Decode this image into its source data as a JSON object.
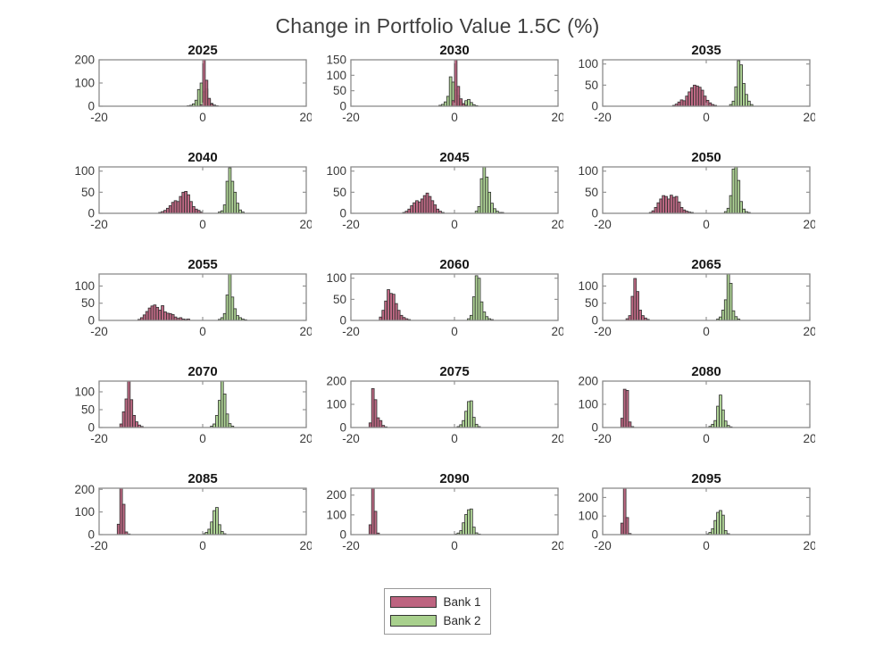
{
  "figure": {
    "title": "Change in Portfolio Value 1.5C (%)"
  },
  "colors": {
    "bank1": "#b95c7a",
    "bank2": "#a8d08d",
    "bar_edge": "#2f2f2f",
    "axis": "#8c8c8c",
    "tick_label": "#3a3a3a",
    "subplot_title": "#161616"
  },
  "legend": {
    "items": [
      {
        "label": "Bank 1",
        "color": "#bd6480"
      },
      {
        "label": "Bank 2",
        "color": "#a8d08d"
      }
    ]
  },
  "chart_data": [
    {
      "type": "histogram",
      "title": "2025",
      "xlim": [
        -20,
        20
      ],
      "xticks": [
        -20,
        0,
        20
      ],
      "ylim": [
        0,
        200
      ],
      "yticks": [
        0,
        100,
        200
      ],
      "series": [
        {
          "name": "Bank 1",
          "bin_start": -0.5,
          "bin_width": 0.5,
          "counts": [
            6,
            200,
            112,
            34,
            10,
            4
          ]
        },
        {
          "name": "Bank 2",
          "bin_start": -3.0,
          "bin_width": 0.5,
          "counts": [
            2,
            4,
            10,
            26,
            72,
            100,
            62,
            74,
            28,
            12,
            5,
            2
          ]
        }
      ]
    },
    {
      "type": "histogram",
      "title": "2030",
      "xlim": [
        -20,
        20
      ],
      "xticks": [
        -20,
        0,
        20
      ],
      "ylim": [
        0,
        150
      ],
      "yticks": [
        0,
        50,
        100,
        150
      ],
      "series": [
        {
          "name": "Bank 1",
          "bin_start": -0.5,
          "bin_width": 0.5,
          "counts": [
            18,
            150,
            64,
            24,
            8,
            3
          ]
        },
        {
          "name": "Bank 2",
          "bin_start": -3.0,
          "bin_width": 0.5,
          "counts": [
            3,
            6,
            14,
            32,
            95,
            78,
            52,
            34,
            14,
            8,
            18,
            22,
            12,
            5,
            2
          ]
        }
      ]
    },
    {
      "type": "histogram",
      "title": "2035",
      "xlim": [
        -20,
        20
      ],
      "xticks": [
        -20,
        0,
        20
      ],
      "ylim": [
        0,
        110
      ],
      "yticks": [
        0,
        50,
        100
      ],
      "series": [
        {
          "name": "Bank 1",
          "bin_start": -6.5,
          "bin_width": 0.5,
          "counts": [
            2,
            5,
            10,
            15,
            13,
            24,
            34,
            44,
            50,
            48,
            45,
            38,
            24,
            14,
            8,
            4,
            2
          ]
        },
        {
          "name": "Bank 2",
          "bin_start": 4.5,
          "bin_width": 0.5,
          "counts": [
            4,
            12,
            46,
            108,
            98,
            54,
            28,
            12,
            4
          ]
        }
      ]
    },
    {
      "type": "histogram",
      "title": "2040",
      "xlim": [
        -20,
        20
      ],
      "xticks": [
        -20,
        0,
        20
      ],
      "ylim": [
        0,
        110
      ],
      "yticks": [
        0,
        50,
        100
      ],
      "series": [
        {
          "name": "Bank 1",
          "bin_start": -8.5,
          "bin_width": 0.5,
          "counts": [
            2,
            4,
            7,
            12,
            18,
            26,
            30,
            28,
            40,
            50,
            52,
            44,
            28,
            16,
            10,
            7,
            3
          ]
        },
        {
          "name": "Bank 2",
          "bin_start": 3.0,
          "bin_width": 0.5,
          "counts": [
            3,
            6,
            20,
            76,
            108,
            76,
            50,
            24,
            8,
            3
          ]
        }
      ]
    },
    {
      "type": "histogram",
      "title": "2045",
      "xlim": [
        -20,
        20
      ],
      "xticks": [
        -20,
        0,
        20
      ],
      "ylim": [
        0,
        110
      ],
      "yticks": [
        0,
        50,
        100
      ],
      "series": [
        {
          "name": "Bank 1",
          "bin_start": -10.0,
          "bin_width": 0.5,
          "counts": [
            2,
            5,
            10,
            18,
            25,
            30,
            27,
            34,
            42,
            48,
            40,
            30,
            20,
            10,
            5,
            2
          ]
        },
        {
          "name": "Bank 2",
          "bin_start": 4.0,
          "bin_width": 0.5,
          "counts": [
            5,
            16,
            82,
            110,
            86,
            50,
            24,
            11,
            5,
            2,
            2
          ]
        }
      ]
    },
    {
      "type": "histogram",
      "title": "2050",
      "xlim": [
        -20,
        20
      ],
      "xticks": [
        -20,
        0,
        20
      ],
      "ylim": [
        0,
        110
      ],
      "yticks": [
        0,
        50,
        100
      ],
      "series": [
        {
          "name": "Bank 1",
          "bin_start": -11.0,
          "bin_width": 0.5,
          "counts": [
            2,
            6,
            14,
            25,
            34,
            42,
            40,
            34,
            43,
            38,
            40,
            27,
            14,
            8,
            5,
            3,
            2
          ]
        },
        {
          "name": "Bank 2",
          "bin_start": 3.5,
          "bin_width": 0.5,
          "counts": [
            4,
            12,
            42,
            105,
            110,
            78,
            28,
            10,
            4,
            2
          ]
        }
      ]
    },
    {
      "type": "histogram",
      "title": "2055",
      "xlim": [
        -20,
        20
      ],
      "xticks": [
        -20,
        0,
        20
      ],
      "ylim": [
        0,
        135
      ],
      "yticks": [
        0,
        50,
        100
      ],
      "series": [
        {
          "name": "Bank 1",
          "bin_start": -12.5,
          "bin_width": 0.5,
          "counts": [
            3,
            8,
            16,
            26,
            36,
            42,
            45,
            38,
            30,
            43,
            25,
            21,
            20,
            17,
            10,
            6,
            8,
            4,
            3,
            4
          ]
        },
        {
          "name": "Bank 2",
          "bin_start": 3.0,
          "bin_width": 0.5,
          "counts": [
            3,
            8,
            20,
            74,
            135,
            68,
            34,
            14,
            8,
            4,
            2
          ]
        }
      ]
    },
    {
      "type": "histogram",
      "title": "2060",
      "xlim": [
        -20,
        20
      ],
      "xticks": [
        -20,
        0,
        20
      ],
      "ylim": [
        0,
        110
      ],
      "yticks": [
        0,
        50,
        100
      ],
      "series": [
        {
          "name": "Bank 1",
          "bin_start": -14.5,
          "bin_width": 0.5,
          "counts": [
            8,
            24,
            46,
            73,
            64,
            62,
            40,
            24,
            12,
            7,
            4,
            2
          ]
        },
        {
          "name": "Bank 2",
          "bin_start": 2.5,
          "bin_width": 0.5,
          "counts": [
            4,
            12,
            56,
            106,
            100,
            44,
            20,
            9,
            4,
            2
          ]
        }
      ]
    },
    {
      "type": "histogram",
      "title": "2065",
      "xlim": [
        -20,
        20
      ],
      "xticks": [
        -20,
        0,
        20
      ],
      "ylim": [
        0,
        135
      ],
      "yticks": [
        0,
        50,
        100
      ],
      "series": [
        {
          "name": "Bank 1",
          "bin_start": -15.5,
          "bin_width": 0.5,
          "counts": [
            5,
            14,
            70,
            122,
            84,
            30,
            14,
            7,
            3
          ]
        },
        {
          "name": "Bank 2",
          "bin_start": 2.0,
          "bin_width": 0.5,
          "counts": [
            4,
            10,
            30,
            60,
            135,
            108,
            28,
            11,
            4
          ]
        }
      ]
    },
    {
      "type": "histogram",
      "title": "2070",
      "xlim": [
        -20,
        20
      ],
      "xticks": [
        -20,
        0,
        20
      ],
      "ylim": [
        0,
        130
      ],
      "yticks": [
        0,
        50,
        100
      ],
      "series": [
        {
          "name": "Bank 1",
          "bin_start": -16.0,
          "bin_width": 0.5,
          "counts": [
            10,
            44,
            80,
            130,
            78,
            34,
            16,
            7,
            3
          ]
        },
        {
          "name": "Bank 2",
          "bin_start": 1.5,
          "bin_width": 0.5,
          "counts": [
            4,
            10,
            34,
            76,
            130,
            94,
            38,
            11,
            4
          ]
        }
      ]
    },
    {
      "type": "histogram",
      "title": "2075",
      "xlim": [
        -20,
        20
      ],
      "xticks": [
        -20,
        0,
        20
      ],
      "ylim": [
        0,
        200
      ],
      "yticks": [
        0,
        100,
        200
      ],
      "series": [
        {
          "name": "Bank 1",
          "bin_start": -16.5,
          "bin_width": 0.5,
          "counts": [
            20,
            168,
            120,
            42,
            30,
            9,
            3
          ]
        },
        {
          "name": "Bank 2",
          "bin_start": 0.5,
          "bin_width": 0.5,
          "counts": [
            4,
            12,
            30,
            70,
            112,
            115,
            44,
            14,
            4
          ]
        }
      ]
    },
    {
      "type": "histogram",
      "title": "2080",
      "xlim": [
        -20,
        20
      ],
      "xticks": [
        -20,
        0,
        20
      ],
      "ylim": [
        0,
        200
      ],
      "yticks": [
        0,
        100,
        200
      ],
      "series": [
        {
          "name": "Bank 1",
          "bin_start": -16.5,
          "bin_width": 0.5,
          "counts": [
            40,
            165,
            160,
            24,
            4
          ]
        },
        {
          "name": "Bank 2",
          "bin_start": 0.5,
          "bin_width": 0.5,
          "counts": [
            5,
            14,
            30,
            92,
            140,
            76,
            28,
            9,
            3
          ]
        }
      ]
    },
    {
      "type": "histogram",
      "title": "2085",
      "xlim": [
        -20,
        20
      ],
      "xticks": [
        -20,
        0,
        20
      ],
      "ylim": [
        0,
        205
      ],
      "yticks": [
        0,
        100,
        200
      ],
      "series": [
        {
          "name": "Bank 1",
          "bin_start": -16.5,
          "bin_width": 0.5,
          "counts": [
            46,
            205,
            134,
            12,
            3
          ]
        },
        {
          "name": "Bank 2",
          "bin_start": 0.0,
          "bin_width": 0.5,
          "counts": [
            4,
            10,
            24,
            56,
            106,
            120,
            44,
            14,
            4
          ]
        }
      ]
    },
    {
      "type": "histogram",
      "title": "2090",
      "xlim": [
        -20,
        20
      ],
      "xticks": [
        -20,
        0,
        20
      ],
      "ylim": [
        0,
        235
      ],
      "yticks": [
        0,
        100,
        200
      ],
      "series": [
        {
          "name": "Bank 1",
          "bin_start": -16.5,
          "bin_width": 0.5,
          "counts": [
            50,
            235,
            118,
            8
          ]
        },
        {
          "name": "Bank 2",
          "bin_start": 0.0,
          "bin_width": 0.5,
          "counts": [
            3,
            8,
            20,
            60,
            102,
            126,
            130,
            38,
            9,
            3
          ]
        }
      ]
    },
    {
      "type": "histogram",
      "title": "2095",
      "xlim": [
        -20,
        20
      ],
      "xticks": [
        -20,
        0,
        20
      ],
      "ylim": [
        0,
        250
      ],
      "yticks": [
        0,
        100,
        200
      ],
      "series": [
        {
          "name": "Bank 1",
          "bin_start": -16.5,
          "bin_width": 0.5,
          "counts": [
            62,
            250,
            92,
            6
          ]
        },
        {
          "name": "Bank 2",
          "bin_start": 0.0,
          "bin_width": 0.5,
          "counts": [
            4,
            12,
            32,
            76,
            120,
            130,
            105,
            22,
            5
          ]
        }
      ]
    }
  ]
}
